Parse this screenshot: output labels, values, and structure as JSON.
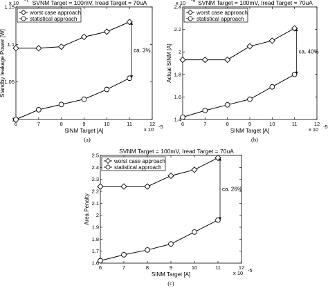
{
  "chart_data": [
    {
      "type": "line",
      "caption": "(a)",
      "title": "SVNM Target = 100mV, Iread Target = 70uA",
      "title_prefix_exp": "x 10",
      "title_prefix_exp_power": "-7",
      "xlabel": "SINM Target [A]",
      "ylabel": "Standby leakage Power [W]",
      "x_exponent_label": "x 10",
      "x_exponent_power": "-5",
      "xlim": [
        6,
        12
      ],
      "ylim": [
        1.0,
        1.15
      ],
      "xticks": [
        "6",
        "7",
        "8",
        "9",
        "10",
        "11",
        "12"
      ],
      "yticks": [
        "1",
        "1.05",
        "1.1",
        "1.15"
      ],
      "x": [
        6,
        7,
        8,
        9,
        10,
        11
      ],
      "series": [
        {
          "name": "worst case approach",
          "marker": "diamond",
          "values": [
            1.095,
            1.095,
            1.097,
            1.11,
            1.117,
            1.13
          ]
        },
        {
          "name": "statistical approach",
          "marker": "circle",
          "values": [
            1.0,
            1.013,
            1.02,
            1.027,
            1.04,
            1.055
          ]
        }
      ],
      "annotation": "ca. 3%",
      "legend_position": "top-left",
      "grid": false
    },
    {
      "type": "line",
      "caption": "(b)",
      "title": "SVNM Target = 100mV, Iread Target = 70uA",
      "title_prefix_exp": "x 10",
      "title_prefix_exp_power": "-4",
      "xlabel": "SINM Target [A]",
      "ylabel": "Actual SINM [A]",
      "x_exponent_label": "x 10",
      "x_exponent_power": "-5",
      "xlim": [
        6,
        12
      ],
      "ylim": [
        1.4,
        2.4
      ],
      "xticks": [
        "6",
        "7",
        "8",
        "9",
        "10",
        "11",
        "12"
      ],
      "yticks": [
        "1.4",
        "1.6",
        "1.8",
        "2",
        "2.2",
        "2.4"
      ],
      "x": [
        6,
        7,
        8,
        9,
        10,
        11
      ],
      "series": [
        {
          "name": "worst case approach",
          "marker": "diamond",
          "values": [
            1.93,
            1.93,
            1.93,
            2.05,
            2.1,
            2.21
          ]
        },
        {
          "name": "statistical approach",
          "marker": "circle",
          "values": [
            1.42,
            1.48,
            1.53,
            1.58,
            1.69,
            1.8
          ]
        }
      ],
      "annotation": "ca. 40%",
      "legend_position": "top-left",
      "grid": false
    },
    {
      "type": "line",
      "caption": "(c)",
      "title": "SVNM Target = 100mV, Iread Target = 70uA",
      "xlabel": "SINM Target [A]",
      "ylabel": "Area Penalty",
      "x_exponent_label": "x 10",
      "x_exponent_power": "-5",
      "xlim": [
        6,
        12
      ],
      "ylim": [
        1.6,
        2.5
      ],
      "xticks": [
        "6",
        "7",
        "8",
        "9",
        "10",
        "11",
        "12"
      ],
      "yticks": [
        "1.6",
        "1.7",
        "1.8",
        "1.9",
        "2",
        "2.1",
        "2.2",
        "2.3",
        "2.4",
        "2.5"
      ],
      "x": [
        6,
        7,
        8,
        9,
        10,
        11
      ],
      "series": [
        {
          "name": "worst case approach",
          "marker": "diamond",
          "values": [
            2.24,
            2.24,
            2.24,
            2.33,
            2.38,
            2.48
          ]
        },
        {
          "name": "statistical approach",
          "marker": "circle",
          "values": [
            1.62,
            1.67,
            1.71,
            1.76,
            1.86,
            1.96
          ]
        }
      ],
      "annotation": "ca. 26%",
      "legend_position": "top-left",
      "grid": false
    }
  ]
}
